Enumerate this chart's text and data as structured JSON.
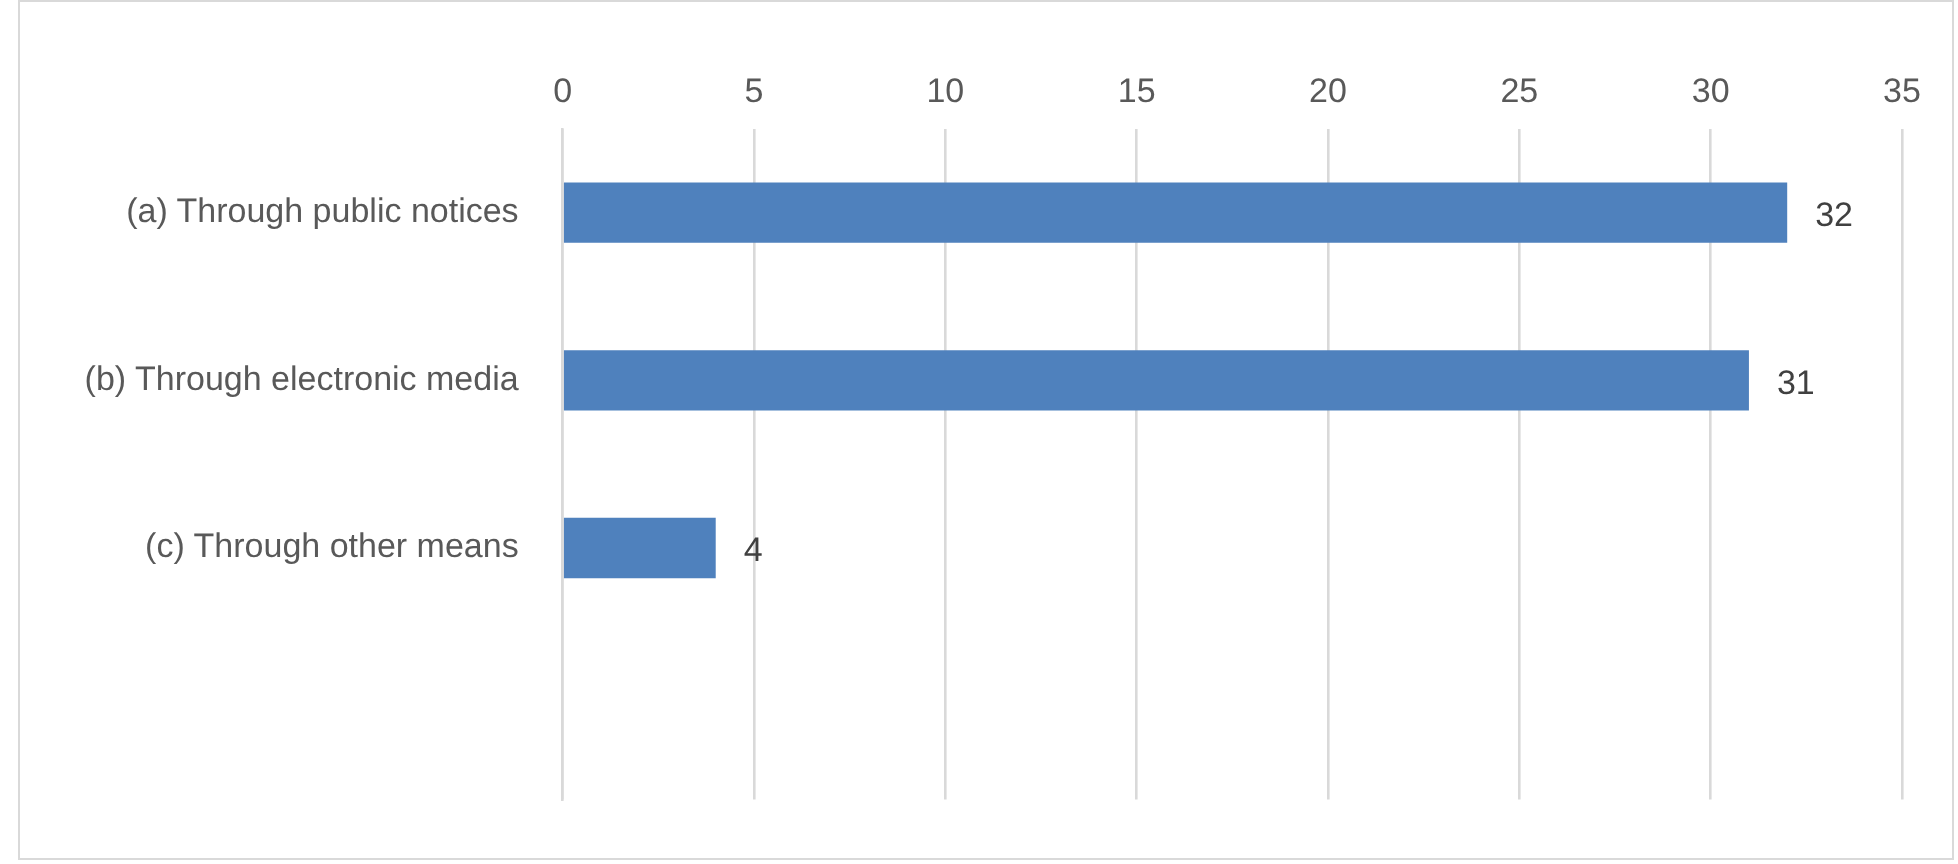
{
  "chart_data": {
    "type": "bar",
    "orientation": "horizontal",
    "categories": [
      "(a) Through public notices",
      "(b) Through electronic media",
      "(c) Through other means",
      null
    ],
    "values": [
      32,
      31,
      4,
      null
    ],
    "color": "#4f81bd",
    "xlim": [
      0,
      35
    ],
    "xticks": [
      0,
      5,
      10,
      15,
      20,
      25,
      30,
      35
    ],
    "grid": "x",
    "data_labels": true,
    "legend": false
  }
}
